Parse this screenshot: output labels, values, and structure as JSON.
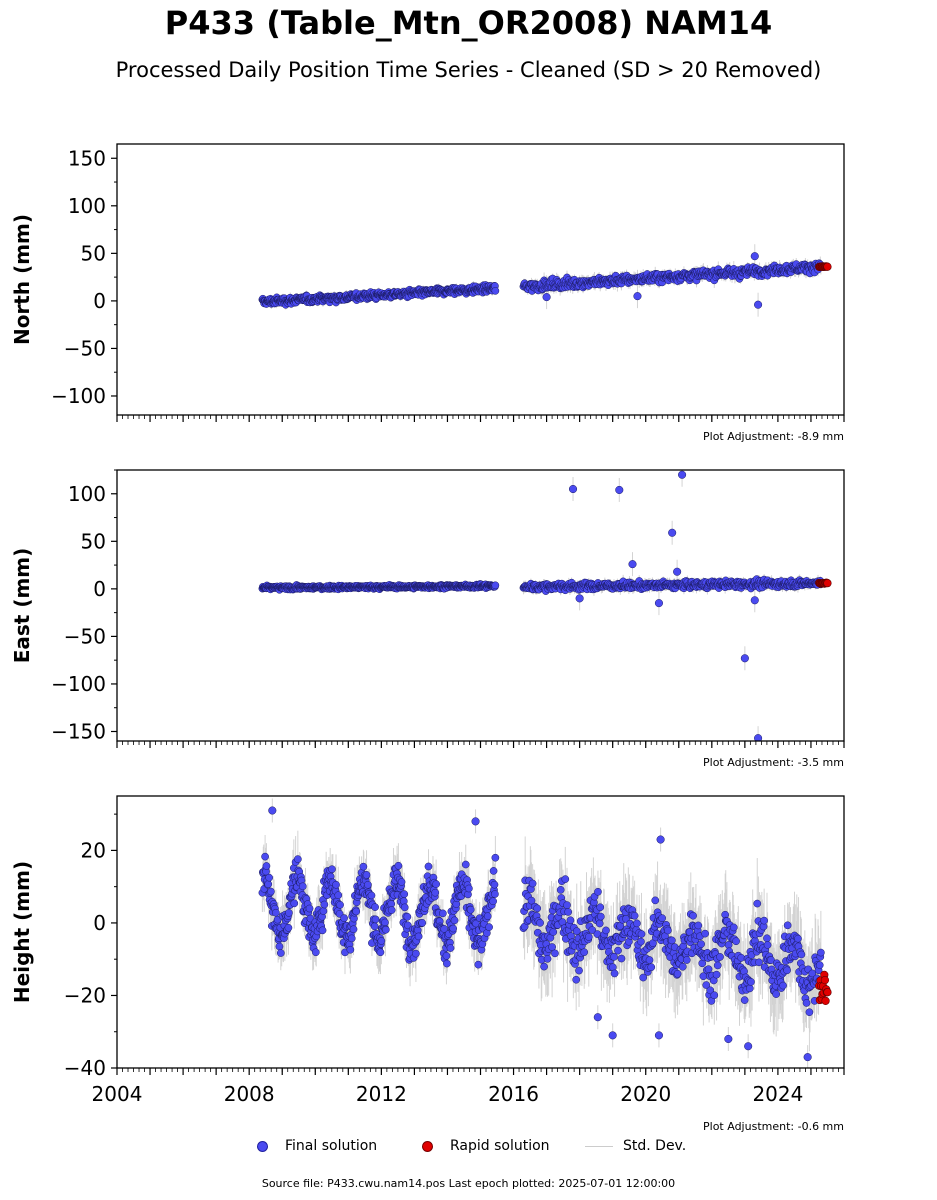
{
  "header": {
    "title": "P433 (Table_Mtn_OR2008) NAM14",
    "subtitle": "Processed Daily Position Time Series - Cleaned (SD > 20 Removed)"
  },
  "legend": {
    "final": "Final solution",
    "rapid": "Rapid solution",
    "std": "Std. Dev."
  },
  "footer": {
    "source": "Source file: P433.cwu.nam14.pos  Last epoch plotted: 2025-07-01 12:00:00"
  },
  "colors": {
    "final_fill": "#4a4af0",
    "final_edge": "#1a1a60",
    "rapid_fill": "#e00000",
    "std_line": "#b0b0b0"
  },
  "chart_data": [
    {
      "type": "scatter",
      "ylabel": "North (mm)",
      "xlim": [
        2004,
        2026
      ],
      "ylim": [
        -120,
        165
      ],
      "yticks": [
        -100,
        -50,
        0,
        50,
        100,
        150
      ],
      "adjustment": "Plot Adjustment: -8.9 mm",
      "segments": [
        {
          "x0": 2008.4,
          "x1": 2015.45,
          "y0": -1,
          "y1": 13,
          "noise": 3,
          "std": 4
        },
        {
          "x0": 2016.3,
          "x1": 2025.3,
          "y0": 15,
          "y1": 36,
          "noise": 4,
          "std": 6
        }
      ],
      "outliers": [
        [
          2023.3,
          47
        ],
        [
          2023.4,
          -4
        ],
        [
          2019.75,
          5
        ],
        [
          2017.0,
          4
        ]
      ],
      "rapid": {
        "x0": 2025.25,
        "x1": 2025.5,
        "y": 36,
        "noise": 0.5
      }
    },
    {
      "type": "scatter",
      "ylabel": "East (mm)",
      "xlim": [
        2004,
        2026
      ],
      "ylim": [
        -160,
        125
      ],
      "yticks": [
        -150,
        -100,
        -50,
        0,
        50,
        100
      ],
      "adjustment": "Plot Adjustment: -3.5 mm",
      "segments": [
        {
          "x0": 2008.4,
          "x1": 2015.45,
          "y0": 1,
          "y1": 3,
          "noise": 1.5,
          "std": 3
        },
        {
          "x0": 2016.3,
          "x1": 2025.3,
          "y0": 2,
          "y1": 6,
          "noise": 3,
          "std": 5
        }
      ],
      "outliers": [
        [
          2017.8,
          105
        ],
        [
          2019.2,
          104
        ],
        [
          2021.1,
          120
        ],
        [
          2020.8,
          59
        ],
        [
          2019.6,
          26
        ],
        [
          2020.95,
          18
        ],
        [
          2023.0,
          -73
        ],
        [
          2023.4,
          -157
        ],
        [
          2020.4,
          -15
        ],
        [
          2023.3,
          -12
        ],
        [
          2018.0,
          -10
        ]
      ],
      "rapid": {
        "x0": 2025.25,
        "x1": 2025.5,
        "y": 6,
        "noise": 0.5
      }
    },
    {
      "type": "scatter",
      "ylabel": "Height (mm)",
      "xlim": [
        2004,
        2026
      ],
      "ylim": [
        -40,
        35
      ],
      "yticks": [
        -40,
        -20,
        0,
        20
      ],
      "xticks": [
        2004,
        2008,
        2012,
        2016,
        2020,
        2024
      ],
      "adjustment": "Plot Adjustment: -0.6 mm",
      "segments": [
        {
          "x0": 2008.4,
          "x1": 2015.45,
          "y0": 5,
          "y1": 2,
          "noise": 4.5,
          "seasonal": 8,
          "std": 6
        },
        {
          "x0": 2016.3,
          "x1": 2025.3,
          "y0": 0,
          "y1": -12,
          "noise": 6,
          "seasonal": 6,
          "std": 10
        }
      ],
      "outliers": [
        [
          2008.7,
          31
        ],
        [
          2014.85,
          28
        ],
        [
          2020.45,
          23
        ],
        [
          2019.0,
          -31
        ],
        [
          2022.5,
          -32
        ],
        [
          2023.1,
          -34
        ],
        [
          2024.9,
          -37
        ],
        [
          2018.55,
          -26
        ],
        [
          2020.4,
          -31
        ]
      ],
      "rapid": {
        "x0": 2025.25,
        "x1": 2025.5,
        "y": -19,
        "noise": 3.5
      }
    }
  ]
}
